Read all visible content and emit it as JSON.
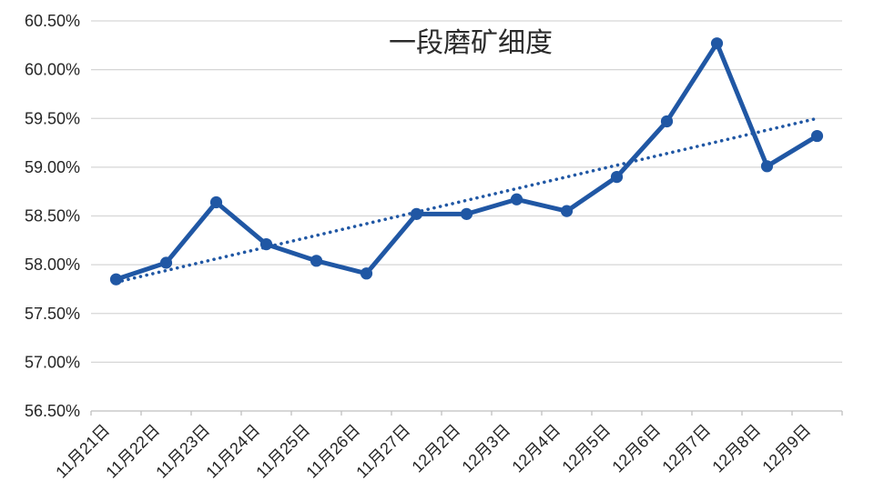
{
  "chart_data": {
    "type": "line",
    "title": "一段磨矿细度",
    "categories": [
      "11月21日",
      "11月22日",
      "11月23日",
      "11月24日",
      "11月25日",
      "11月26日",
      "11月27日",
      "12月2日",
      "12月3日",
      "12月4日",
      "12月5日",
      "12月6日",
      "12月7日",
      "12月8日",
      "12月9日"
    ],
    "series": [
      {
        "name": "一段磨矿细度",
        "values": [
          57.85,
          58.02,
          58.64,
          58.21,
          58.04,
          57.91,
          58.52,
          58.52,
          58.67,
          58.55,
          58.9,
          59.47,
          60.27,
          59.01,
          59.32
        ],
        "color": "#2057A4",
        "marker": "circle"
      }
    ],
    "trendline": {
      "type": "linear",
      "style": "dotted",
      "color": "#2057A4",
      "start_value": 57.82,
      "end_value": 59.5
    },
    "ylim": [
      56.5,
      60.5
    ],
    "ytick_step": 0.5,
    "ytick_labels": [
      "56.50%",
      "57.00%",
      "57.50%",
      "58.00%",
      "58.50%",
      "59.00%",
      "59.50%",
      "60.00%",
      "60.50%"
    ],
    "legend": "none",
    "grid": "horizontal",
    "colors": {
      "grid": "#D6D6D6",
      "axis": "#BFBFBF",
      "labels": "#262626",
      "title": "#2B2B2B",
      "background": "#FFFFFF"
    }
  }
}
